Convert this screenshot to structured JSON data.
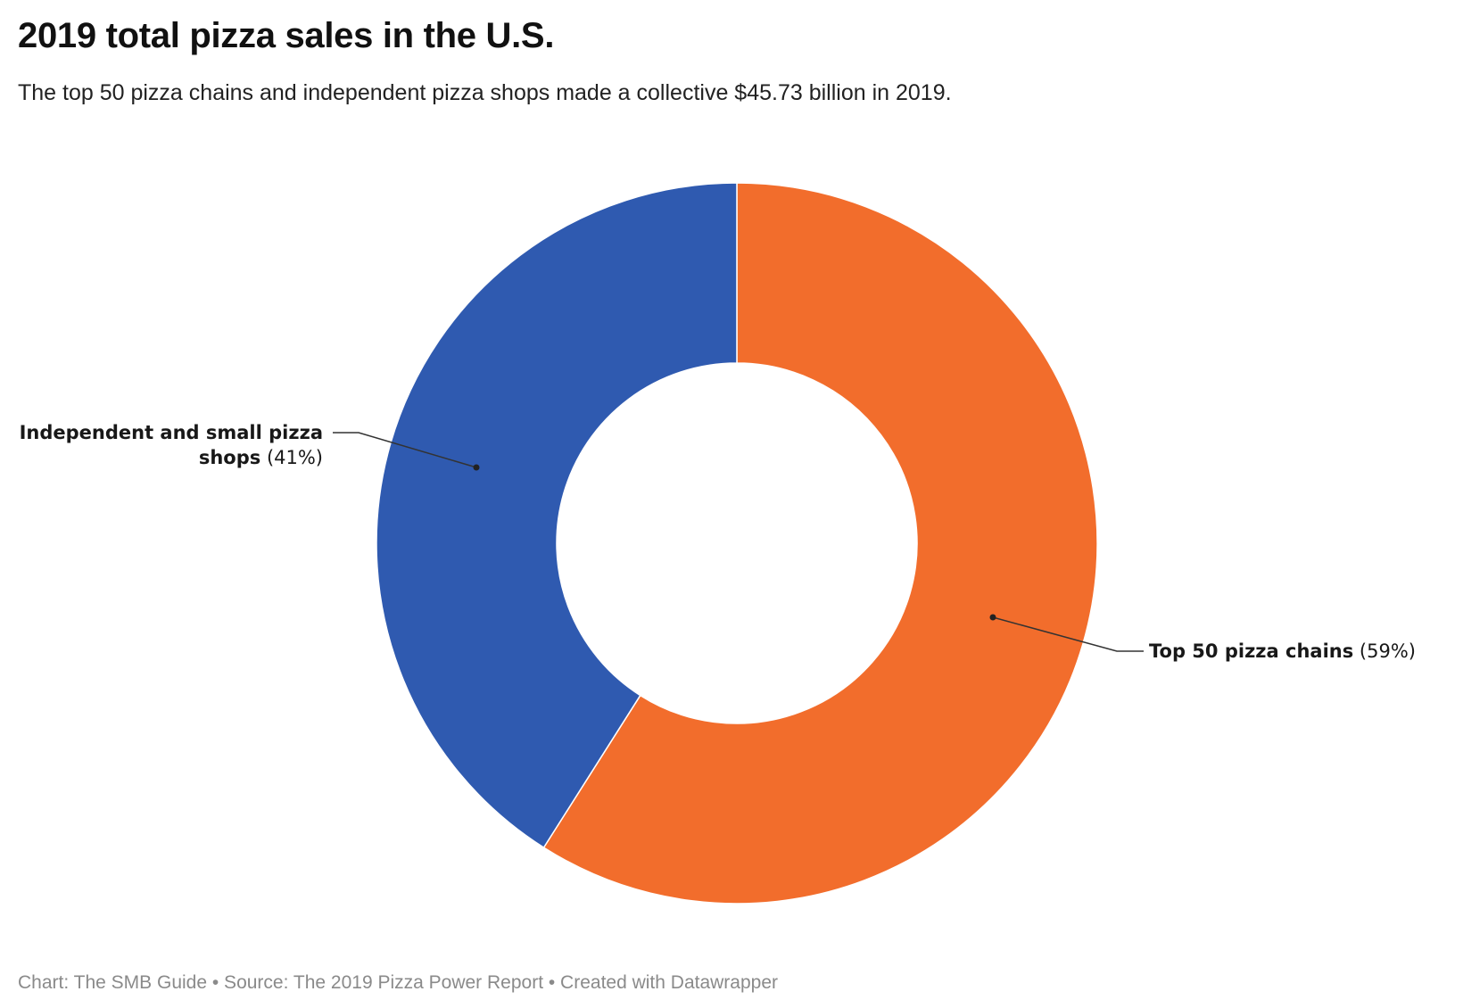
{
  "chart_data": {
    "type": "pie",
    "donut": true,
    "title": "2019 total pizza sales in the U.S.",
    "subtitle": "The top 50 pizza chains and independent pizza shops made a collective $45.73 billion in 2019.",
    "slices": [
      {
        "name": "Top 50 pizza chains",
        "value": 59,
        "value_label": "(59%)",
        "color": "#f26d2c"
      },
      {
        "name_lines": [
          "Independent and small pizza",
          "shops"
        ],
        "value": 41,
        "value_label": "(41%)",
        "color": "#2f5ab0"
      }
    ]
  },
  "footer": {
    "text": "Chart: The SMB Guide • Source: The 2019 Pizza Power Report • Created with Datawrapper"
  }
}
